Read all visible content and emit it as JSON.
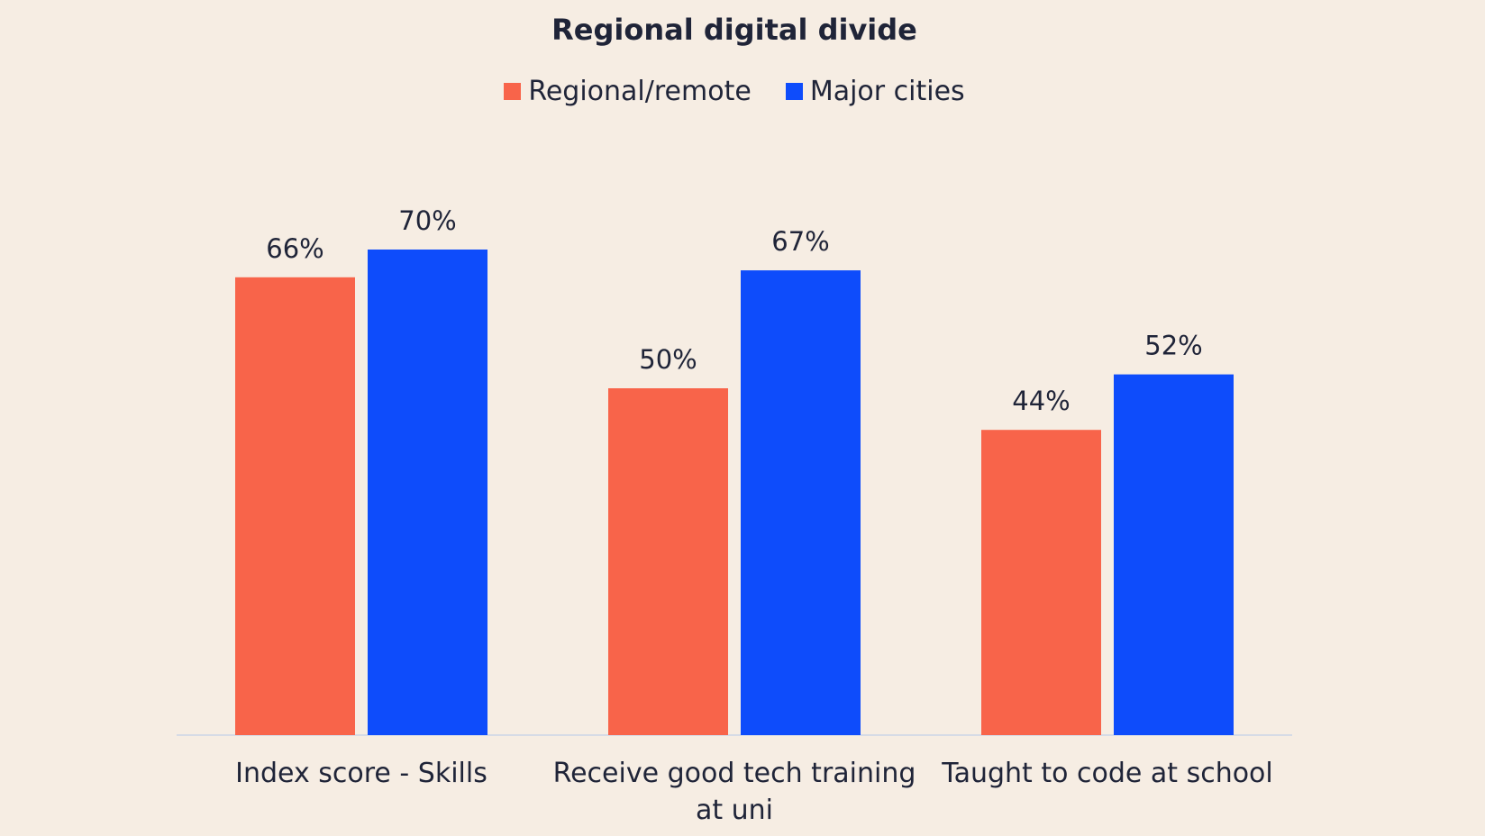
{
  "chart_data": {
    "type": "bar",
    "title": "Regional digital divide",
    "categories": [
      [
        "Index score - Skills"
      ],
      [
        "Receive good tech training",
        "at uni"
      ],
      [
        "Taught to code at school"
      ]
    ],
    "series": [
      {
        "name": "Regional/remote",
        "color": "#f8644a",
        "values": [
          66,
          50,
          44
        ],
        "labels": [
          "66%",
          "50%",
          "44%"
        ]
      },
      {
        "name": "Major cities",
        "color": "#0e4cfb",
        "values": [
          70,
          67,
          52
        ],
        "labels": [
          "70%",
          "67%",
          "52%"
        ]
      }
    ],
    "ylim": [
      0,
      70
    ],
    "legend_position": "top-center",
    "grid": false,
    "axis_color": "#d6dbe6",
    "text_color": "#1f2438",
    "background": "#f6ede3"
  }
}
